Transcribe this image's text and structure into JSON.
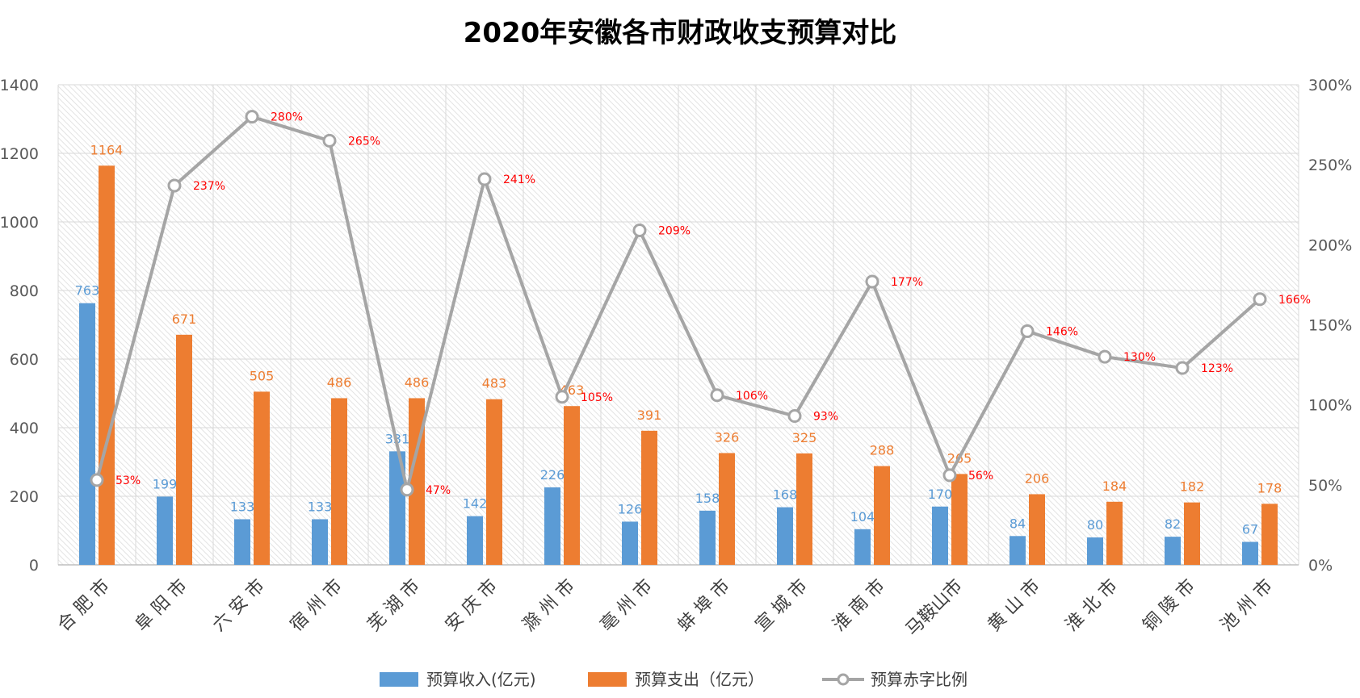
{
  "chart_data": {
    "type": "bar",
    "title": "2020年安徽各市财政收支预算对比",
    "categories": [
      "合肥市",
      "阜阳市",
      "六安市",
      "宿州市",
      "芜湖市",
      "安庆市",
      "滁州市",
      "亳州市",
      "蚌埠市",
      "宣城市",
      "淮南市",
      "马鞍山市",
      "黄山市",
      "淮北市",
      "铜陵市",
      "池州市"
    ],
    "category_labels": [
      "合 肥 市",
      "阜 阳 市",
      "六 安 市",
      "宿 州 市",
      "芜 湖 市",
      "安 庆 市",
      "滁 州 市",
      "亳 州 市",
      "蚌 埠 市",
      "宣 城 市",
      "淮 南 市",
      "马鞍山市",
      "黄 山 市",
      "淮 北 市",
      "铜 陵 市",
      "池 州 市"
    ],
    "series": [
      {
        "name": "预算收入(亿元)",
        "type": "bar",
        "axis": "left",
        "color": "#5b9bd5",
        "values": [
          763,
          199,
          133,
          133,
          331,
          142,
          226,
          126,
          158,
          168,
          104,
          170,
          84,
          80,
          82,
          67
        ],
        "labels": [
          "763",
          "199",
          "133",
          "133",
          "331",
          "142",
          "226",
          "126",
          "158",
          "168",
          "104",
          "170",
          "84",
          "80",
          "82",
          "67"
        ]
      },
      {
        "name": "预算支出（亿元）",
        "type": "bar",
        "axis": "left",
        "color": "#ed7d31",
        "values": [
          1164,
          671,
          505,
          486,
          486,
          483,
          463,
          391,
          326,
          325,
          288,
          265,
          206,
          184,
          182,
          178
        ],
        "labels": [
          "1164",
          "671",
          "505",
          "486",
          "486",
          "483",
          "463",
          "391",
          "326",
          "325",
          "288",
          "265",
          "206",
          "184",
          "182",
          "178"
        ]
      },
      {
        "name": "预算赤字比例",
        "type": "line",
        "axis": "right",
        "color": "#a5a5a5",
        "values": [
          53,
          237,
          280,
          265,
          47,
          241,
          105,
          209,
          106,
          93,
          177,
          56,
          146,
          130,
          123,
          166
        ],
        "labels": [
          "53%",
          "237%",
          "280%",
          "265%",
          "47%",
          "241%",
          "105%",
          "209%",
          "106%",
          "93%",
          "177%",
          "56%",
          "146%",
          "130%",
          "123%",
          "166%"
        ]
      }
    ],
    "y_left": {
      "min": 0,
      "max": 1400,
      "ticks": [
        "0",
        "200",
        "400",
        "600",
        "800",
        "1000",
        "1200",
        "1400"
      ]
    },
    "y_right": {
      "min": 0,
      "max": 300,
      "ticks": [
        "0%",
        "50%",
        "100%",
        "150%",
        "200%",
        "250%",
        "300%"
      ]
    },
    "grid": true,
    "legend_position": "bottom"
  }
}
